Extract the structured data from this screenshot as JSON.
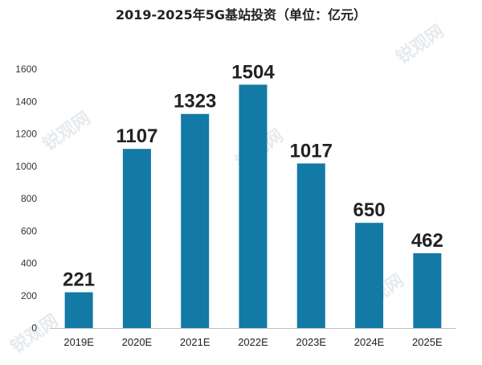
{
  "chart_data": {
    "type": "bar",
    "title": "2019-2025年5G基站投资（单位：亿元）",
    "categories": [
      "2019E",
      "2020E",
      "2021E",
      "2022E",
      "2023E",
      "2024E",
      "2025E"
    ],
    "values": [
      221,
      1107,
      1323,
      1504,
      1017,
      650,
      462
    ],
    "yticks": [
      "0",
      "200",
      "400",
      "600",
      "800",
      "1000",
      "1200",
      "1400",
      "1600"
    ],
    "ylim": [
      0,
      1600
    ],
    "grid": false,
    "legend": "none",
    "bar_color": "#1379a5"
  },
  "watermark": {
    "text": "锐观网"
  }
}
